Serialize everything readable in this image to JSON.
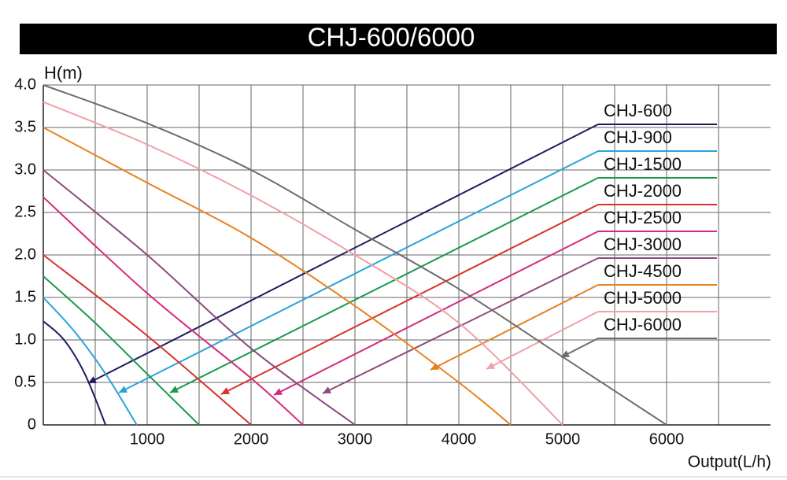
{
  "chart_data": {
    "type": "line",
    "title": "CHJ-600/6000",
    "y_label": "H(m)",
    "x_label": "Output(L/h)",
    "xlim": [
      0,
      7000
    ],
    "xticks": [
      1000,
      2000,
      3000,
      4000,
      5000,
      6000
    ],
    "xminorticks": [
      500,
      1500,
      2500,
      3500,
      4500,
      5500,
      6500
    ],
    "ylim": [
      0,
      4
    ],
    "yticks": [
      {
        "value": 0,
        "label": "0"
      },
      {
        "value": 0.5,
        "label": "0.5"
      },
      {
        "value": 1,
        "label": "1.0"
      },
      {
        "value": 1.5,
        "label": "1.5"
      },
      {
        "value": 2,
        "label": "2.0"
      },
      {
        "value": 2.5,
        "label": "2.5"
      },
      {
        "value": 3,
        "label": "3.0"
      },
      {
        "value": 3.5,
        "label": "3.5"
      },
      {
        "value": 4,
        "label": "4.0"
      }
    ],
    "grid": true,
    "series": [
      {
        "name": "CHJ-600",
        "color": "#1f1b5e",
        "x": [
          0,
          200,
          400,
          600
        ],
        "values": [
          1.22,
          1.0,
          0.6,
          0
        ]
      },
      {
        "name": "CHJ-900",
        "color": "#29a3dc",
        "x": [
          0,
          300,
          600,
          900
        ],
        "values": [
          1.5,
          1.1,
          0.6,
          0
        ]
      },
      {
        "name": "CHJ-1500",
        "color": "#1a9a4a",
        "x": [
          0,
          500,
          1000,
          1500
        ],
        "values": [
          1.75,
          1.2,
          0.6,
          0
        ]
      },
      {
        "name": "CHJ-2000",
        "color": "#d9302a",
        "x": [
          0,
          1000,
          2000
        ],
        "values": [
          2.0,
          1.05,
          0
        ]
      },
      {
        "name": "CHJ-2500",
        "color": "#d6287e",
        "x": [
          0,
          1000,
          2000,
          2500
        ],
        "values": [
          2.68,
          1.55,
          0.55,
          0
        ]
      },
      {
        "name": "CHJ-3000",
        "color": "#8b4a7e",
        "x": [
          0,
          1000,
          2000,
          3000
        ],
        "values": [
          3.0,
          2.0,
          0.9,
          0
        ]
      },
      {
        "name": "CHJ-4500",
        "color": "#e6821e",
        "x": [
          0,
          1000,
          2000,
          3000,
          4000,
          4500
        ],
        "values": [
          3.5,
          2.85,
          2.2,
          1.4,
          0.5,
          0
        ]
      },
      {
        "name": "CHJ-5000",
        "color": "#f0a0a8",
        "x": [
          0,
          1000,
          2000,
          3000,
          4000,
          5000
        ],
        "values": [
          3.8,
          3.3,
          2.7,
          2.0,
          1.2,
          0
        ]
      },
      {
        "name": "CHJ-6000",
        "color": "#6d6d6d",
        "x": [
          0,
          1000,
          2000,
          3000,
          4000,
          5000,
          6000
        ],
        "values": [
          4.0,
          3.55,
          3.0,
          2.3,
          1.6,
          0.8,
          0
        ]
      }
    ]
  }
}
